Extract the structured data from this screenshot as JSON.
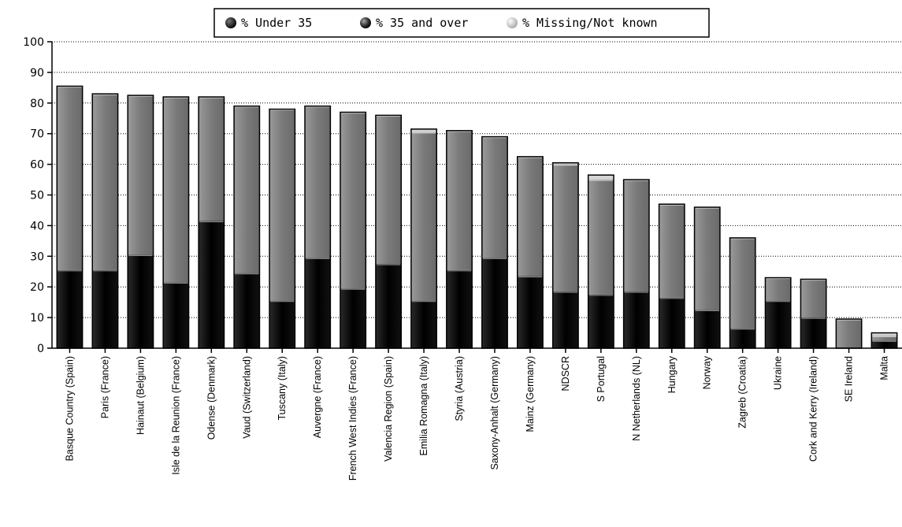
{
  "chart_data": {
    "type": "bar",
    "stacked": true,
    "legend": {
      "position": "top-center",
      "entries": [
        "% Under 35",
        "% 35 and over",
        "% Missing/Not known"
      ]
    },
    "ylim": [
      0,
      100
    ],
    "yticks": [
      0,
      10,
      20,
      30,
      40,
      50,
      60,
      70,
      80,
      90,
      100
    ],
    "grid": "horizontal-dotted",
    "categories": [
      "Basque Country (Spain)",
      "Paris (France)",
      "Hainaut (Belgium)",
      "Isle de la Reunion (France)",
      "Odense (Denmark)",
      "Vaud (Switzerland)",
      "Tuscany (Italy)",
      "Auvergne (France)",
      "French West Indies (France)",
      "Valencia Region (Spain)",
      "Emilia Romagna (Italy)",
      "Styria (Austria)",
      "Saxony-Anhalt (Germany)",
      "Mainz (Germany)",
      "NDSCR",
      "S Portugal",
      "N Netherlands (NL)",
      "Hungary",
      "Norway",
      "Zagreb (Croatia)",
      "Ukraine",
      "Cork and Kerry (Ireland)",
      "SE Ireland",
      "Malta"
    ],
    "series": [
      {
        "name": "% Under 35",
        "color": "#000000",
        "values": [
          25.5,
          25.5,
          30.5,
          21.5,
          41.5,
          24.5,
          15.5,
          29.5,
          19.5,
          27.5,
          15.5,
          25.5,
          29.5,
          23.5,
          18.5,
          17.5,
          18.5,
          16.5,
          12.5,
          6.5,
          15.5,
          10,
          0,
          2.5
        ]
      },
      {
        "name": "% 35 and over",
        "color": "#7f7f7f",
        "values": [
          60,
          57.5,
          52,
          60.5,
          40.5,
          54.5,
          62.5,
          49.5,
          57.5,
          48.5,
          55,
          45.5,
          39.5,
          39,
          41.5,
          37.5,
          36.5,
          30.5,
          33.5,
          29.5,
          7.5,
          12.5,
          9.5,
          1.5
        ]
      },
      {
        "name": "% Missing/Not known",
        "color": "#c8c8c8",
        "values": [
          0,
          0,
          0,
          0,
          0,
          0,
          0,
          0,
          0,
          0,
          1,
          0,
          0,
          0,
          0.5,
          1.5,
          0,
          0,
          0,
          0,
          0,
          0,
          0,
          1
        ]
      }
    ]
  }
}
